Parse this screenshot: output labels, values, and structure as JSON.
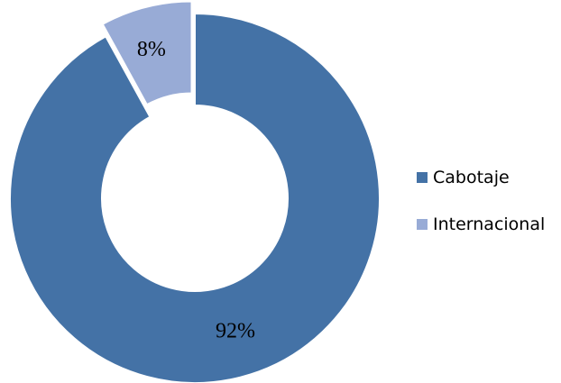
{
  "chart_data": {
    "type": "pie",
    "variant": "donut",
    "categories": [
      "Cabotaje",
      "Internacional"
    ],
    "values": [
      92,
      8
    ],
    "data_labels": [
      "92%",
      "8%"
    ],
    "colors": [
      "#4472a6",
      "#98abd6"
    ],
    "slice_border_color": "#ffffff",
    "legend": {
      "placement": "right",
      "entries": [
        "Cabotaje",
        "Internacional"
      ]
    },
    "title": "",
    "exploded_slice": "Internacional"
  }
}
